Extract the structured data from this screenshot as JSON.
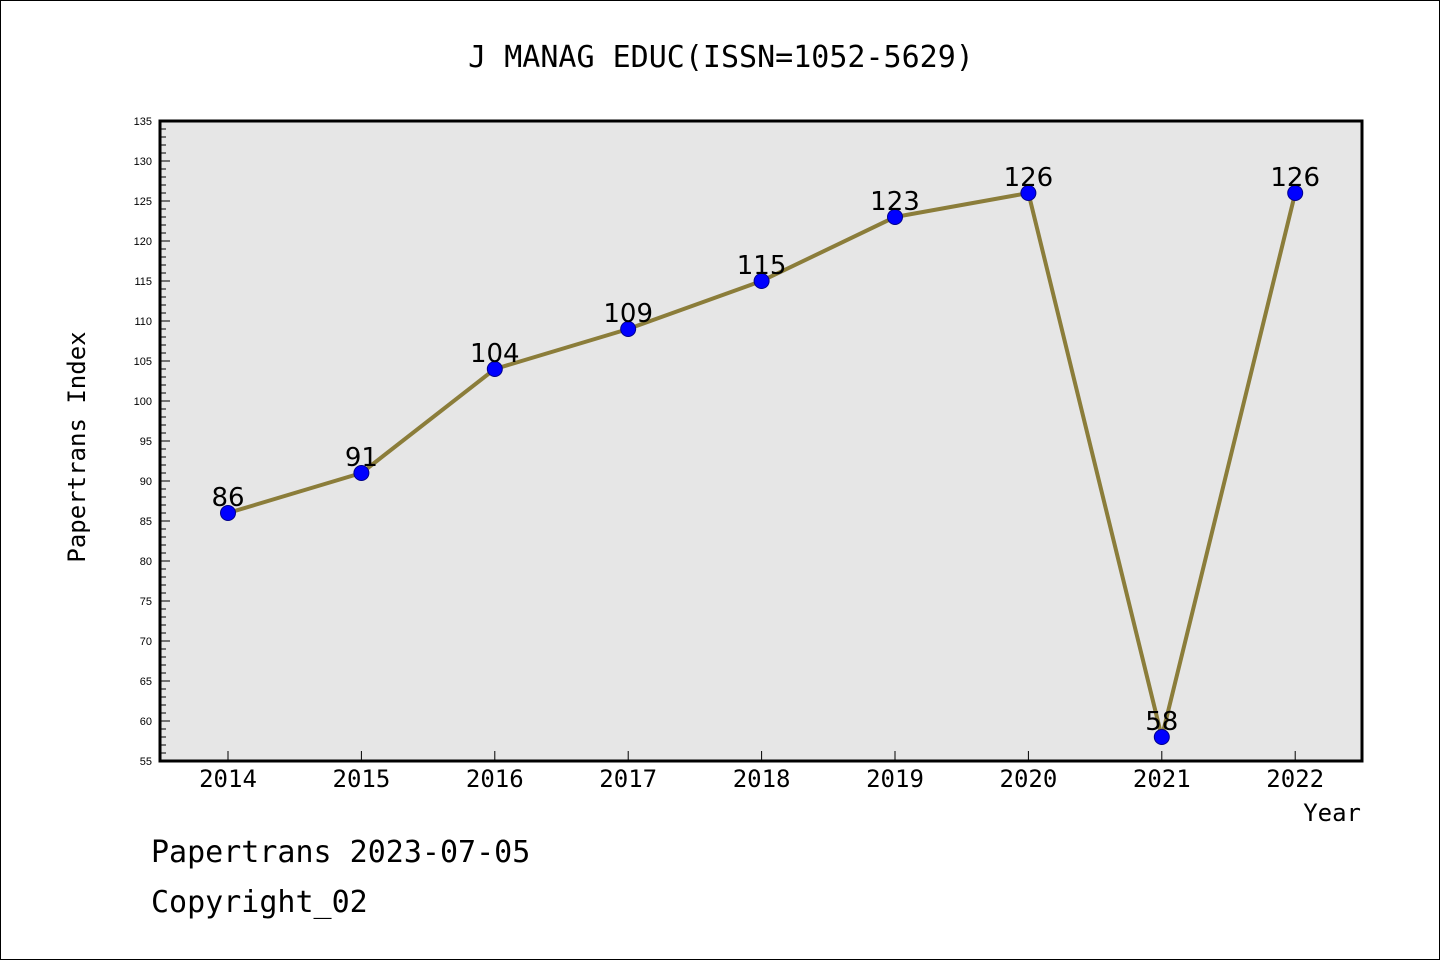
{
  "chart_data": {
    "type": "line",
    "title": "J MANAG EDUC(ISSN=1052-5629)",
    "xlabel": "Year",
    "ylabel": "Papertrans Index",
    "categories": [
      "2014",
      "2015",
      "2016",
      "2017",
      "2018",
      "2019",
      "2020",
      "2021",
      "2022"
    ],
    "series": [
      {
        "values": [
          86,
          91,
          104,
          109,
          115,
          123,
          126,
          58,
          126
        ]
      }
    ],
    "data_labels": [
      "86",
      "91",
      "104",
      "109",
      "115",
      "123",
      "126",
      "58",
      "126"
    ],
    "ylim": [
      55,
      135
    ],
    "y_major_ticks": [
      55,
      60,
      65,
      70,
      75,
      80,
      85,
      90,
      95,
      100,
      105,
      110,
      115,
      120,
      125,
      130,
      135
    ],
    "grid": false,
    "legend": "none",
    "colors": {
      "plot_background": "#e6e6e6",
      "line": "#8b7d3a",
      "marker": "#0000ff",
      "marker_edge": "#00008b"
    }
  },
  "footer": {
    "line1": "Papertrans 2023-07-05",
    "line2": "Copyright_02"
  }
}
